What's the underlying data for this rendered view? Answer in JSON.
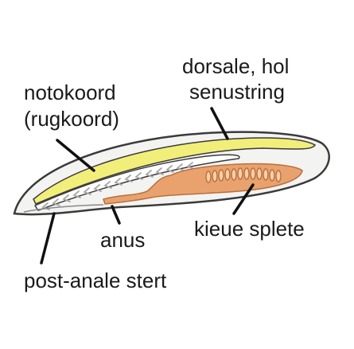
{
  "labels": {
    "notochord_line1": "notokoord",
    "notochord_line2": "(rugkoord)",
    "nerve_line1": "dorsale, hol",
    "nerve_line2": "senustring",
    "gill_slits": "kieue splete",
    "anus": "anus",
    "tail": "post-anale stert"
  },
  "colors": {
    "outline": "#3a3a3a",
    "body_fill": "#f3f3f1",
    "nerve_cord": "#f2ee7a",
    "notochord_fill": "#ffffff",
    "gut": "#e9a26e",
    "gut_edge": "#b8703e",
    "muscle_chevrons": "#a8a8a8",
    "leader_lines": "#111111"
  }
}
